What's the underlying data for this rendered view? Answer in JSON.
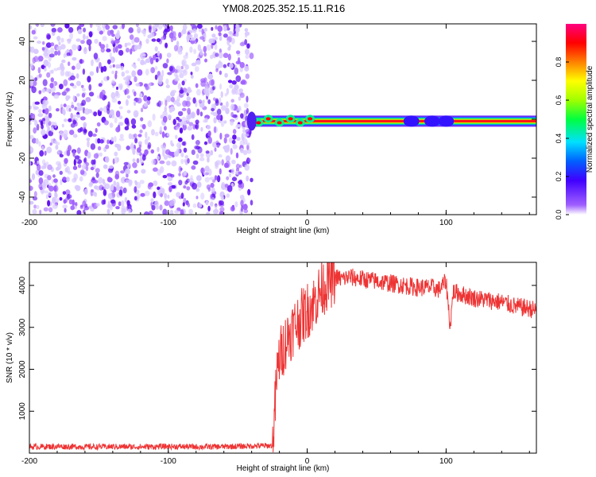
{
  "title": "YM08.2025.352.15.11.R16",
  "chart_data": [
    {
      "type": "heatmap",
      "xlabel": "Height of straight line (km)",
      "ylabel": "Frequency (Hz)",
      "xlim": [
        -200,
        165
      ],
      "ylim": [
        -49,
        49
      ],
      "xticks": [
        "-200",
        "-100",
        "0",
        "100"
      ],
      "xtick_values": [
        -200,
        -100,
        0,
        100
      ],
      "yticks": [
        "-40",
        "-20",
        "0",
        "20",
        "40"
      ],
      "ytick_values": [
        -40,
        -20,
        0,
        20,
        40
      ],
      "colorbar": {
        "label": "Normalized spectral amplitude",
        "range": [
          0,
          1
        ],
        "ticks": [
          "0.0",
          "0.2",
          "0.4",
          "0.6",
          "0.8"
        ],
        "tick_values": [
          0.0,
          0.2,
          0.4,
          0.6,
          0.8
        ],
        "colormap": [
          "#ffffff",
          "#a060ff",
          "#4000ff",
          "#0060ff",
          "#00e0ff",
          "#00ff40",
          "#a0ff00",
          "#ffff00",
          "#ff8000",
          "#ff0000",
          "#ff0080"
        ]
      },
      "noise_region": {
        "x_range": [
          -200,
          -40
        ],
        "description_freq_range": [
          -49,
          49
        ]
      },
      "signal_band": {
        "x_range": [
          -40,
          165
        ],
        "center_freq_hz": -1,
        "peak_amplitude": 0.95
      },
      "grid": false
    },
    {
      "type": "line",
      "xlabel": "Height of straight line (km)",
      "ylabel": "SNR (10 * v/v)",
      "xlim": [
        -200,
        165
      ],
      "ylim": [
        0,
        4550
      ],
      "xticks": [
        "-200",
        "-100",
        "0",
        "100"
      ],
      "xtick_values": [
        -200,
        -100,
        0,
        100
      ],
      "yticks": [
        "1000",
        "2000",
        "3000",
        "4000"
      ],
      "ytick_values": [
        1000,
        2000,
        3000,
        4000
      ],
      "line_color": "#ee3333",
      "grid": false,
      "series": [
        {
          "x": [
            -200,
            -180,
            -160,
            -140,
            -120,
            -100,
            -80,
            -60,
            -40,
            -30,
            -25,
            -24,
            -22,
            -20,
            -15,
            -10,
            -5,
            0,
            5,
            10,
            15,
            20,
            25,
            30,
            40,
            50,
            60,
            70,
            80,
            90,
            95,
            100,
            103,
            105,
            110,
            120,
            130,
            140,
            150,
            160,
            165
          ],
          "y": [
            150,
            160,
            150,
            155,
            150,
            160,
            150,
            155,
            170,
            175,
            180,
            600,
            1800,
            2300,
            2700,
            3000,
            3200,
            3400,
            3600,
            3900,
            4100,
            4200,
            4150,
            4200,
            4150,
            4100,
            4050,
            4000,
            3950,
            3950,
            3900,
            4100,
            3000,
            3850,
            3800,
            3700,
            3650,
            3600,
            3500,
            3450,
            3400
          ]
        }
      ]
    }
  ]
}
